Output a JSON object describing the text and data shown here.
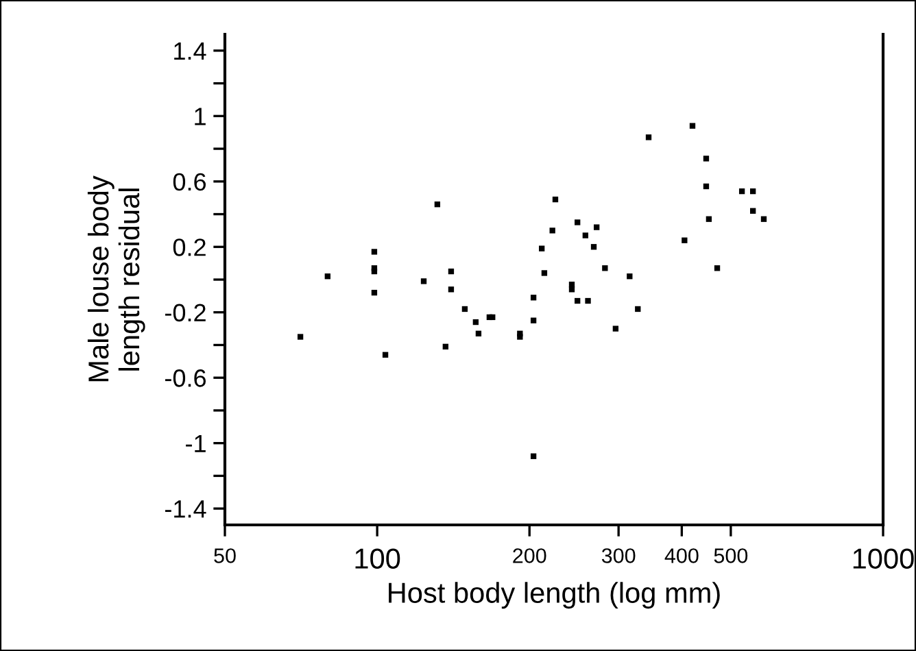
{
  "chart_data": {
    "type": "scatter",
    "xlabel": "Host body length (log mm)",
    "ylabel": "Male louse body\nlength residual",
    "log": "x",
    "marker": "square",
    "grid": false,
    "xlim": [
      50,
      1000
    ],
    "xticks": [
      50,
      100,
      200,
      300,
      400,
      500,
      1000
    ],
    "ylim": [
      -1.5,
      1.5
    ],
    "yticks": [
      1.4,
      {
        "value": 1.2,
        "label": null
      },
      1,
      {
        "value": 0.8,
        "label": null
      },
      0.6,
      {
        "value": 0.4,
        "label": null
      },
      0.2,
      {
        "value": 0,
        "label": null
      },
      -0.2,
      {
        "value": -0.4,
        "label": null
      },
      -0.6,
      {
        "value": -0.8,
        "label": null
      },
      -1,
      {
        "value": -1.2,
        "label": null
      },
      -1.4
    ],
    "series": [
      {
        "color": "#000000",
        "x": [
          70.5,
          79.8,
          98.7,
          98.7,
          98.7,
          98.7,
          103.8,
          123.6,
          131.5,
          136.5,
          140,
          140,
          149,
          156.6,
          158.6,
          166.7,
          169,
          191.5,
          191.5,
          203.7,
          203.7,
          203.7,
          211.5,
          214,
          222,
          225,
          242.5,
          242.5,
          248.8,
          248.8,
          258,
          261,
          268,
          271.5,
          282,
          296,
          315.5,
          327.5,
          344,
          405,
          420,
          447,
          447,
          452.5,
          470,
          526,
          553,
          553,
          581
        ],
        "values": [
          -0.35,
          0.02,
          0.17,
          0.07,
          0.05,
          -0.08,
          -0.46,
          -0.01,
          0.46,
          -0.41,
          0.05,
          -0.06,
          -0.18,
          -0.26,
          -0.33,
          -0.23,
          -0.23,
          -0.33,
          -0.35,
          -0.11,
          -0.25,
          -1.08,
          0.19,
          0.04,
          0.3,
          0.49,
          -0.03,
          -0.06,
          0.35,
          -0.13,
          0.27,
          -0.13,
          0.2,
          0.32,
          0.07,
          -0.3,
          0.02,
          -0.18,
          0.87,
          0.24,
          0.94,
          0.74,
          0.57,
          0.37,
          0.07,
          0.54,
          0.54,
          0.42,
          0.37
        ]
      }
    ]
  }
}
